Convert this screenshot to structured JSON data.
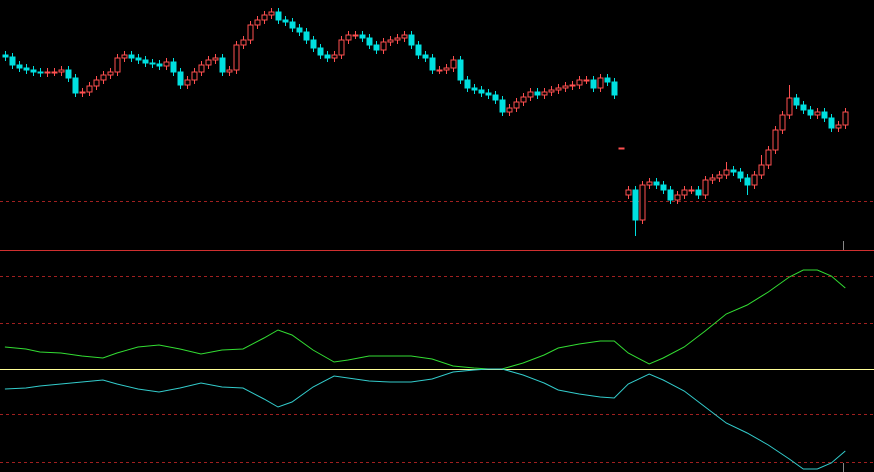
{
  "chart_data": [
    {
      "type": "candlestick",
      "xlim": [
        -0.7,
        124.1
      ],
      "ylim": [
        0,
        250
      ],
      "up_color": "#ff5050",
      "down_color": "#00e0e0",
      "reference_lines": [
        49
      ],
      "reference_color": "#a02020",
      "open": [
        195,
        193,
        185,
        182,
        180,
        178,
        177,
        178,
        178,
        180,
        172,
        157,
        158,
        164,
        170,
        175,
        178,
        192,
        195,
        192,
        190,
        187,
        186,
        184,
        188,
        178,
        165,
        170,
        178,
        185,
        190,
        192,
        178,
        180,
        205,
        210,
        225,
        230,
        235,
        238,
        230,
        228,
        222,
        218,
        210,
        202,
        195,
        192,
        195,
        210,
        215,
        215,
        212,
        205,
        200,
        208,
        210,
        212,
        215,
        205,
        195,
        192,
        180,
        180,
        182,
        190,
        170,
        162,
        160,
        157,
        155,
        150,
        138,
        142,
        148,
        153,
        158,
        155,
        158,
        160,
        162,
        164,
        165,
        170,
        170,
        162,
        172,
        168,
        102,
        55,
        60,
        30,
        65,
        68,
        65,
        60,
        50,
        55,
        60,
        60,
        55,
        70,
        72,
        75,
        80,
        78,
        72,
        65,
        75,
        85,
        100,
        120,
        135,
        152,
        145,
        140,
        135,
        138,
        132,
        122,
        125
      ],
      "high": [
        199,
        197,
        189,
        186,
        184,
        182,
        182,
        182,
        184,
        184,
        176,
        162,
        168,
        174,
        179,
        182,
        196,
        199,
        199,
        196,
        194,
        191,
        190,
        192,
        192,
        182,
        174,
        182,
        189,
        194,
        196,
        196,
        184,
        209,
        214,
        229,
        234,
        239,
        242,
        242,
        234,
        232,
        226,
        222,
        214,
        206,
        199,
        199,
        214,
        219,
        219,
        219,
        216,
        209,
        212,
        214,
        216,
        219,
        219,
        209,
        199,
        196,
        184,
        186,
        194,
        194,
        174,
        166,
        164,
        161,
        159,
        154,
        146,
        152,
        157,
        162,
        162,
        162,
        164,
        166,
        168,
        169,
        174,
        174,
        174,
        176,
        176,
        172,
        102,
        64,
        64,
        69,
        72,
        72,
        69,
        64,
        59,
        64,
        64,
        64,
        74,
        76,
        79,
        88,
        84,
        82,
        76,
        79,
        95,
        104,
        124,
        139,
        165,
        156,
        149,
        144,
        142,
        142,
        136,
        129,
        142
      ],
      "low": [
        189,
        181,
        178,
        176,
        174,
        173,
        173,
        174,
        174,
        168,
        153,
        153,
        154,
        160,
        166,
        171,
        174,
        188,
        188,
        186,
        183,
        182,
        180,
        180,
        174,
        161,
        161,
        166,
        174,
        181,
        186,
        174,
        174,
        176,
        201,
        206,
        221,
        226,
        231,
        226,
        224,
        218,
        214,
        206,
        198,
        191,
        188,
        188,
        191,
        206,
        211,
        208,
        201,
        196,
        196,
        204,
        206,
        208,
        201,
        191,
        188,
        176,
        176,
        176,
        178,
        166,
        158,
        156,
        153,
        151,
        146,
        134,
        134,
        138,
        144,
        149,
        151,
        151,
        154,
        156,
        158,
        160,
        161,
        166,
        158,
        158,
        164,
        151,
        102,
        51,
        14,
        26,
        61,
        61,
        56,
        46,
        46,
        51,
        56,
        51,
        51,
        66,
        68,
        71,
        74,
        68,
        55,
        61,
        71,
        81,
        96,
        116,
        131,
        141,
        136,
        131,
        131,
        128,
        118,
        118,
        121
      ],
      "close": [
        193,
        185,
        182,
        180,
        178,
        177,
        178,
        178,
        180,
        172,
        157,
        158,
        164,
        170,
        175,
        178,
        192,
        195,
        192,
        190,
        187,
        186,
        184,
        188,
        178,
        165,
        170,
        178,
        185,
        190,
        192,
        178,
        180,
        205,
        210,
        225,
        230,
        235,
        238,
        230,
        228,
        222,
        218,
        210,
        202,
        195,
        192,
        195,
        210,
        215,
        215,
        212,
        205,
        200,
        208,
        210,
        212,
        215,
        205,
        195,
        192,
        180,
        180,
        182,
        190,
        170,
        162,
        160,
        157,
        155,
        150,
        138,
        142,
        148,
        153,
        158,
        155,
        158,
        160,
        162,
        164,
        165,
        170,
        170,
        162,
        172,
        168,
        155,
        102,
        60,
        30,
        65,
        68,
        65,
        60,
        50,
        55,
        60,
        60,
        55,
        70,
        72,
        75,
        80,
        78,
        72,
        65,
        75,
        85,
        100,
        120,
        135,
        152,
        145,
        140,
        135,
        138,
        132,
        122,
        125,
        138
      ]
    },
    {
      "type": "line",
      "xlim": [
        -0.7,
        124.1
      ],
      "ylim": [
        -103,
        119
      ],
      "reference_lines": [
        93,
        46,
        -45,
        -93
      ],
      "reference_color": "#a02020",
      "zero_line": 0,
      "zero_color": "#ffff99",
      "x": [
        0,
        3,
        5,
        8,
        11,
        14,
        16,
        19,
        22,
        25,
        28,
        31,
        34,
        37,
        39,
        41,
        44,
        47,
        49,
        52,
        55,
        58,
        61,
        64,
        67,
        69,
        71,
        74,
        77,
        79,
        82,
        85,
        87,
        89,
        92,
        94,
        97,
        100,
        103,
        106,
        109,
        112,
        114,
        116,
        118,
        120
      ],
      "series": [
        {
          "color": "#33dd33",
          "values": [
            22,
            20,
            17,
            16,
            13,
            11,
            16,
            22,
            24,
            20,
            15,
            19,
            20,
            31,
            39,
            34,
            19,
            7,
            9,
            13,
            13,
            13,
            10,
            3,
            1,
            0,
            0,
            6,
            14,
            21,
            25,
            28,
            28,
            16,
            5,
            11,
            22,
            38,
            55,
            64,
            77,
            92,
            99,
            99,
            93,
            81
          ]
        },
        {
          "color": "#33cccc",
          "values": [
            -20,
            -19,
            -17,
            -15,
            -13,
            -11,
            -15,
            -20,
            -23,
            -19,
            -14,
            -18,
            -19,
            -30,
            -38,
            -33,
            -18,
            -7,
            -9,
            -12,
            -13,
            -13,
            -10,
            -3,
            -1,
            0,
            0,
            -6,
            -14,
            -21,
            -25,
            -28,
            -29,
            -15,
            -5,
            -11,
            -22,
            -38,
            -54,
            -64,
            -76,
            -90,
            -100,
            -100,
            -94,
            -82
          ]
        }
      ]
    }
  ]
}
